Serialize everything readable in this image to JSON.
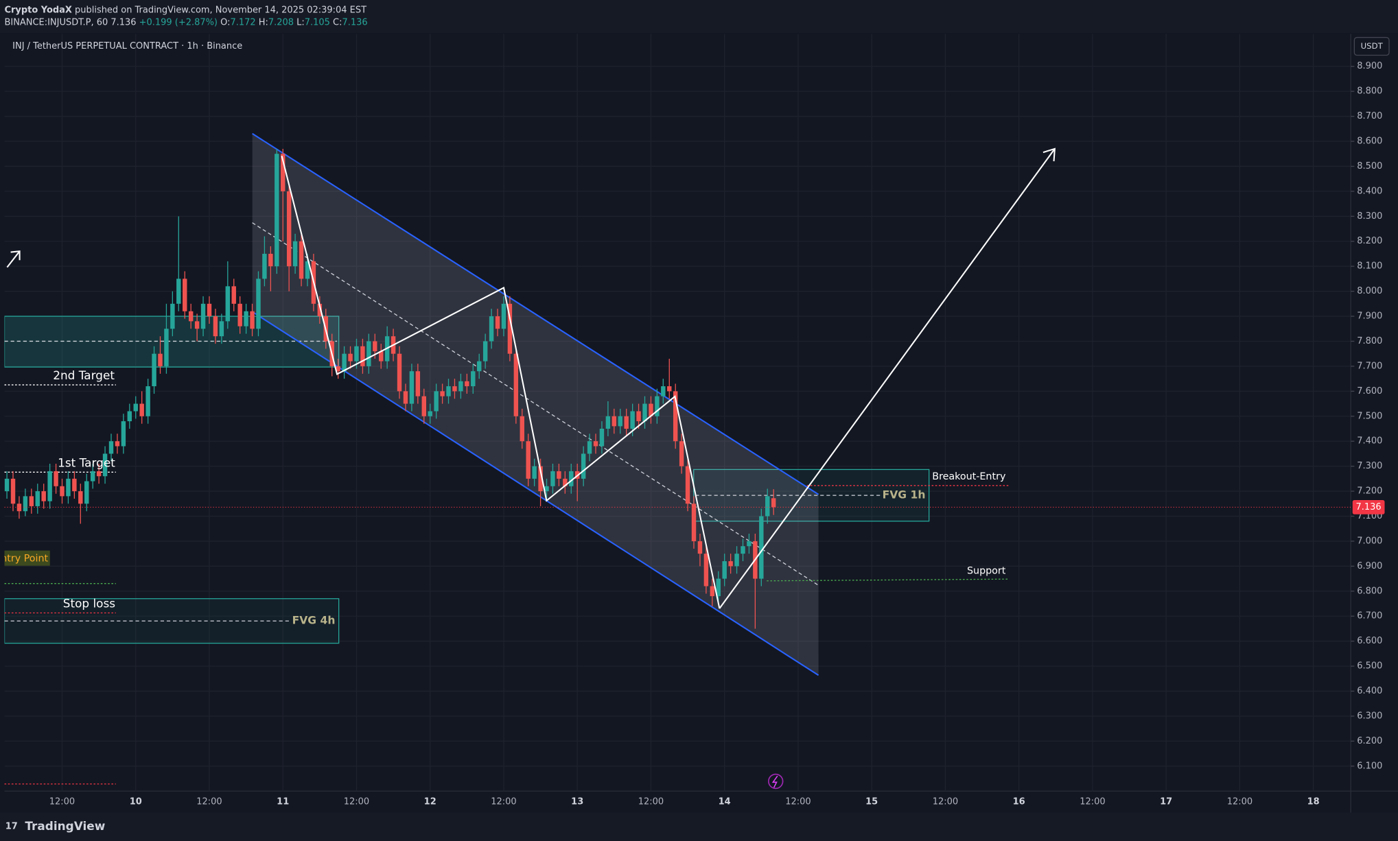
{
  "header": {
    "author": "Crypto YodaX",
    "published": "published on TradingView.com, November 14, 2025 02:39:04 EST",
    "symbol": "BINANCE:INJUSDT.P, 60",
    "price": 7.136,
    "change": "+0.199 (+2.87%)",
    "o_label": "O:",
    "open": 7.172,
    "h_label": "H:",
    "high": 7.208,
    "l_label": "L:",
    "low": 7.105,
    "c_label": "C:",
    "close": 7.136
  },
  "footer": {
    "logo": "TradingView"
  },
  "chart_data": {
    "type": "candlestick",
    "title": "INJ / TetherUS PERPETUAL CONTRACT · 1h · Binance",
    "currency": "USDT",
    "up_color": "#26a69a",
    "down_color": "#ef5350",
    "grid": true,
    "last_price": 7.136,
    "annotations": [
      "2nd Target",
      "1st Target",
      "Entry Point",
      "Stop loss",
      "FVG 4h",
      "FVG 1h",
      "Breakout-Entry",
      "Support"
    ],
    "xlim": [
      -21.4,
      198.1
    ],
    "xticks": [
      {
        "value": -12,
        "label": "12:00"
      },
      {
        "value": 0,
        "label": "10"
      },
      {
        "value": 12,
        "label": "12:00"
      },
      {
        "value": 24,
        "label": "11"
      },
      {
        "value": 36,
        "label": "12:00"
      },
      {
        "value": 48,
        "label": "12"
      },
      {
        "value": 60,
        "label": "12:00"
      },
      {
        "value": 72,
        "label": "13"
      },
      {
        "value": 84,
        "label": "12:00"
      },
      {
        "value": 96,
        "label": "14"
      },
      {
        "value": 108,
        "label": "12:00"
      },
      {
        "value": 120,
        "label": "15"
      },
      {
        "value": 132,
        "label": "12:00"
      },
      {
        "value": 144,
        "label": "16"
      },
      {
        "value": 156,
        "label": "12:00"
      },
      {
        "value": 168,
        "label": "17"
      },
      {
        "value": 180,
        "label": "12:00"
      },
      {
        "value": 192,
        "label": "18"
      }
    ],
    "ylim": [
      6.0,
      9.03
    ],
    "yticks": [
      {
        "value": 6.1,
        "label": "6.100"
      },
      {
        "value": 6.2,
        "label": "6.200"
      },
      {
        "value": 6.3,
        "label": "6.300"
      },
      {
        "value": 6.4,
        "label": "6.400"
      },
      {
        "value": 6.5,
        "label": "6.500"
      },
      {
        "value": 6.6,
        "label": "6.600"
      },
      {
        "value": 6.7,
        "label": "6.700"
      },
      {
        "value": 6.8,
        "label": "6.800"
      },
      {
        "value": 6.9,
        "label": "6.900"
      },
      {
        "value": 7.0,
        "label": "7.000"
      },
      {
        "value": 7.1,
        "label": "7.100"
      },
      {
        "value": 7.2,
        "label": "7.200"
      },
      {
        "value": 7.3,
        "label": "7.300"
      },
      {
        "value": 7.4,
        "label": "7.400"
      },
      {
        "value": 7.5,
        "label": "7.500"
      },
      {
        "value": 7.6,
        "label": "7.600"
      },
      {
        "value": 7.7,
        "label": "7.700"
      },
      {
        "value": 7.8,
        "label": "7.800"
      },
      {
        "value": 7.9,
        "label": "7.900"
      },
      {
        "value": 8.0,
        "label": "8.000"
      },
      {
        "value": 8.1,
        "label": "8.100"
      },
      {
        "value": 8.2,
        "label": "8.200"
      },
      {
        "value": 8.3,
        "label": "8.300"
      },
      {
        "value": 8.4,
        "label": "8.400"
      },
      {
        "value": 8.5,
        "label": "8.500"
      },
      {
        "value": 8.6,
        "label": "8.600"
      },
      {
        "value": 8.7,
        "label": "8.700"
      },
      {
        "value": 8.8,
        "label": "8.800"
      },
      {
        "value": 8.9,
        "label": "8.900"
      }
    ],
    "x": [
      -21,
      -20,
      -19,
      -18,
      -17,
      -16,
      -15,
      -14,
      -13,
      -12,
      -11,
      -10,
      -9,
      -8,
      -7,
      -6,
      -5,
      -4,
      -3,
      -2,
      -1,
      0,
      1,
      2,
      3,
      4,
      5,
      6,
      7,
      8,
      9,
      10,
      11,
      12,
      13,
      14,
      15,
      16,
      17,
      18,
      19,
      20,
      21,
      22,
      23,
      24,
      25,
      26,
      27,
      28,
      29,
      30,
      31,
      32,
      33,
      34,
      35,
      36,
      37,
      38,
      39,
      40,
      41,
      42,
      43,
      44,
      45,
      46,
      47,
      48,
      49,
      50,
      51,
      52,
      53,
      54,
      55,
      56,
      57,
      58,
      59,
      60,
      61,
      62,
      63,
      64,
      65,
      66,
      67,
      68,
      69,
      70,
      71,
      72,
      73,
      74,
      75,
      76,
      77,
      78,
      79,
      80,
      81,
      82,
      83,
      84,
      85,
      86,
      87,
      88,
      89,
      90,
      91,
      92,
      93,
      94,
      95,
      96,
      97,
      98,
      99,
      100,
      101,
      102,
      103,
      104
    ],
    "open": [
      7.2,
      7.25,
      7.15,
      7.12,
      7.18,
      7.14,
      7.2,
      7.16,
      7.28,
      7.22,
      7.18,
      7.25,
      7.2,
      7.15,
      7.24,
      7.28,
      7.26,
      7.35,
      7.4,
      7.38,
      7.48,
      7.52,
      7.55,
      7.5,
      7.62,
      7.75,
      7.7,
      7.85,
      7.95,
      8.05,
      7.92,
      7.88,
      7.85,
      7.95,
      7.9,
      7.82,
      7.88,
      8.02,
      7.95,
      7.86,
      7.92,
      7.85,
      8.05,
      8.15,
      8.1,
      8.55,
      8.4,
      8.1,
      8.2,
      8.05,
      8.12,
      7.95,
      7.9,
      7.8,
      7.7,
      7.68,
      7.75,
      7.72,
      7.78,
      7.7,
      7.8,
      7.76,
      7.72,
      7.82,
      7.75,
      7.6,
      7.55,
      7.68,
      7.58,
      7.5,
      7.52,
      7.6,
      7.58,
      7.62,
      7.6,
      7.64,
      7.62,
      7.68,
      7.72,
      7.8,
      7.9,
      7.85,
      7.95,
      7.75,
      7.5,
      7.4,
      7.25,
      7.3,
      7.2,
      7.22,
      7.28,
      7.25,
      7.22,
      7.28,
      7.25,
      7.35,
      7.4,
      7.38,
      7.45,
      7.5,
      7.46,
      7.5,
      7.45,
      7.52,
      7.48,
      7.55,
      7.5,
      7.58,
      7.62,
      7.6,
      7.4,
      7.3,
      7.15,
      7.0,
      6.95,
      6.82,
      6.78,
      6.85,
      6.92,
      6.9,
      6.95,
      6.98,
      7.0,
      6.85,
      7.1,
      7.172
    ],
    "high": [
      7.28,
      7.28,
      7.18,
      7.21,
      7.21,
      7.23,
      7.23,
      7.31,
      7.31,
      7.25,
      7.28,
      7.28,
      7.23,
      7.27,
      7.31,
      7.31,
      7.38,
      7.43,
      7.43,
      7.51,
      7.55,
      7.58,
      7.6,
      7.65,
      7.78,
      7.82,
      7.95,
      8.0,
      8.3,
      8.08,
      7.95,
      7.91,
      7.98,
      7.98,
      7.93,
      7.91,
      8.12,
      8.05,
      7.98,
      7.95,
      7.95,
      8.08,
      8.22,
      8.18,
      8.57,
      8.57,
      8.43,
      8.23,
      8.23,
      8.15,
      8.15,
      7.98,
      7.93,
      7.83,
      7.73,
      7.78,
      7.78,
      7.81,
      7.81,
      7.83,
      7.83,
      7.79,
      7.86,
      7.85,
      7.78,
      7.63,
      7.71,
      7.71,
      7.61,
      7.55,
      7.63,
      7.63,
      7.65,
      7.65,
      7.67,
      7.67,
      7.71,
      7.75,
      7.83,
      7.93,
      7.93,
      7.98,
      7.98,
      7.78,
      7.53,
      7.43,
      7.33,
      7.33,
      7.25,
      7.31,
      7.31,
      7.28,
      7.31,
      7.31,
      7.38,
      7.43,
      7.43,
      7.48,
      7.56,
      7.53,
      7.53,
      7.53,
      7.55,
      7.55,
      7.58,
      7.58,
      7.61,
      7.65,
      7.73,
      7.63,
      7.43,
      7.33,
      7.18,
      7.03,
      6.98,
      6.85,
      6.88,
      6.95,
      6.95,
      6.98,
      7.01,
      7.03,
      7.03,
      7.13,
      7.21,
      7.208
    ],
    "low": [
      7.17,
      7.12,
      7.09,
      7.1,
      7.11,
      7.11,
      7.13,
      7.13,
      7.19,
      7.15,
      7.15,
      7.17,
      7.07,
      7.12,
      7.21,
      7.23,
      7.23,
      7.32,
      7.35,
      7.35,
      7.45,
      7.49,
      7.47,
      7.47,
      7.59,
      7.67,
      7.67,
      7.82,
      7.92,
      7.89,
      7.85,
      7.8,
      7.82,
      7.87,
      7.79,
      7.79,
      7.85,
      7.92,
      7.83,
      7.83,
      7.82,
      7.82,
      8.02,
      8.0,
      8.07,
      8.2,
      8.0,
      8.07,
      8.02,
      8.02,
      7.92,
      7.87,
      7.77,
      7.66,
      7.65,
      7.65,
      7.69,
      7.69,
      7.67,
      7.67,
      7.73,
      7.69,
      7.69,
      7.72,
      7.57,
      7.52,
      7.52,
      7.55,
      7.47,
      7.47,
      7.49,
      7.55,
      7.55,
      7.57,
      7.57,
      7.59,
      7.59,
      7.65,
      7.69,
      7.77,
      7.82,
      7.82,
      7.72,
      7.47,
      7.37,
      7.22,
      7.22,
      7.14,
      7.17,
      7.19,
      7.22,
      7.19,
      7.19,
      7.16,
      7.22,
      7.32,
      7.35,
      7.35,
      7.42,
      7.43,
      7.43,
      7.42,
      7.42,
      7.45,
      7.45,
      7.47,
      7.47,
      7.55,
      7.57,
      7.37,
      7.27,
      7.12,
      6.97,
      6.9,
      6.79,
      6.74,
      6.75,
      6.82,
      6.87,
      6.87,
      6.92,
      6.95,
      6.65,
      6.82,
      7.07,
      7.105
    ],
    "close": [
      7.25,
      7.15,
      7.12,
      7.18,
      7.14,
      7.2,
      7.16,
      7.28,
      7.22,
      7.18,
      7.25,
      7.2,
      7.15,
      7.24,
      7.28,
      7.26,
      7.35,
      7.4,
      7.38,
      7.48,
      7.52,
      7.55,
      7.5,
      7.62,
      7.75,
      7.7,
      7.85,
      7.95,
      8.05,
      7.92,
      7.88,
      7.85,
      7.95,
      7.9,
      7.82,
      7.88,
      8.02,
      7.95,
      7.86,
      7.92,
      7.85,
      8.05,
      8.15,
      8.1,
      8.55,
      8.4,
      8.1,
      8.2,
      8.05,
      8.12,
      7.95,
      7.9,
      7.8,
      7.7,
      7.68,
      7.75,
      7.72,
      7.78,
      7.7,
      7.8,
      7.76,
      7.72,
      7.82,
      7.75,
      7.6,
      7.55,
      7.68,
      7.58,
      7.5,
      7.52,
      7.6,
      7.58,
      7.62,
      7.6,
      7.64,
      7.62,
      7.68,
      7.72,
      7.8,
      7.9,
      7.85,
      7.95,
      7.75,
      7.5,
      7.4,
      7.25,
      7.3,
      7.2,
      7.22,
      7.28,
      7.25,
      7.22,
      7.28,
      7.25,
      7.35,
      7.4,
      7.38,
      7.45,
      7.5,
      7.46,
      7.5,
      7.45,
      7.52,
      7.48,
      7.55,
      7.5,
      7.58,
      7.62,
      7.6,
      7.4,
      7.3,
      7.15,
      7.0,
      6.95,
      6.82,
      6.78,
      6.85,
      6.92,
      6.9,
      6.95,
      6.98,
      7.0,
      6.85,
      7.1,
      7.18,
      7.136
    ]
  }
}
